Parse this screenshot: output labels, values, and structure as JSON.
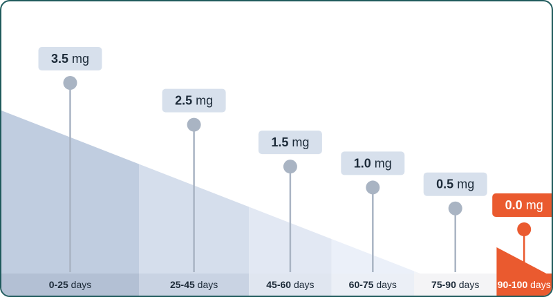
{
  "chart_data": {
    "type": "bar",
    "title": "",
    "xlabel": "",
    "ylabel": "",
    "unit": "mg",
    "categories": [
      {
        "range": "0-25",
        "suffix": "days"
      },
      {
        "range": "25-45",
        "suffix": "days"
      },
      {
        "range": "45-60",
        "suffix": "days"
      },
      {
        "range": "60-75",
        "suffix": "days"
      },
      {
        "range": "75-90",
        "suffix": "days"
      },
      {
        "range": "90-100",
        "suffix": "days"
      }
    ],
    "values": [
      3.5,
      2.5,
      1.5,
      1.0,
      0.5,
      0.0
    ],
    "value_labels": [
      "3.5",
      "2.5",
      "1.5",
      "1.0",
      "0.5",
      "0.0"
    ],
    "x_domain": [
      0,
      100
    ],
    "segment_bounds": [
      [
        0,
        25
      ],
      [
        25,
        45
      ],
      [
        45,
        60
      ],
      [
        60,
        75
      ],
      [
        75,
        90
      ],
      [
        90,
        100
      ]
    ],
    "highlight_index": 5,
    "colors": {
      "segments": [
        "#c0cde0",
        "#d5deec",
        "#e2e8f3",
        "#ebf0f9",
        "#f3f5f9",
        "#ea5a2f"
      ],
      "labels": [
        "#b3c0d4",
        "#c9d3e3",
        "#e0e6f0",
        "#ebeff6",
        "#f4f4f6",
        "#ea5a2f"
      ],
      "callout": "#d7e0ec",
      "callout_text": "#1c2a38",
      "highlight": "#ea5a2f",
      "highlight_text": "#ffffff",
      "stem": "#a9b4c3",
      "dot": "#a9b4c3",
      "border": "#1f5a5c"
    }
  }
}
